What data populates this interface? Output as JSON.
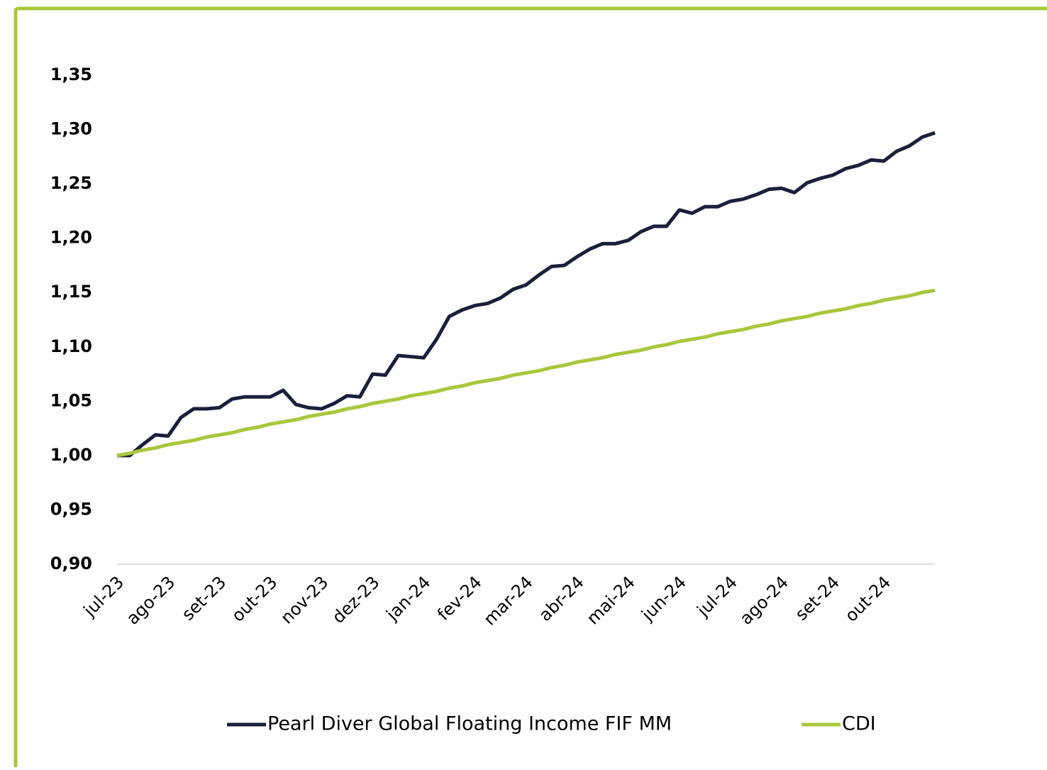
{
  "chart_data": {
    "type": "line",
    "categories": [
      "jul-23",
      null,
      null,
      null,
      "ago-23",
      null,
      null,
      null,
      "set-23",
      null,
      null,
      null,
      "out-23",
      null,
      null,
      null,
      "nov-23",
      null,
      null,
      null,
      "dez-23",
      null,
      null,
      null,
      "jan-24",
      null,
      null,
      null,
      "fev-24",
      null,
      null,
      null,
      "mar-24",
      null,
      null,
      null,
      "abr-24",
      null,
      null,
      null,
      "mai-24",
      null,
      null,
      null,
      "jun-24",
      null,
      null,
      null,
      "jul-24",
      null,
      null,
      null,
      "ago-24",
      null,
      null,
      null,
      "set-24",
      null,
      null,
      null,
      "out-24",
      null,
      null,
      null,
      null
    ],
    "series": [
      {
        "name": "Pearl Diver Global Floating Income FIF MM",
        "color": "#1c1f3b",
        "values": [
          1.0,
          1.0,
          1.01,
          1.019,
          1.018,
          1.035,
          1.043,
          1.043,
          1.044,
          1.052,
          1.054,
          1.054,
          1.054,
          1.06,
          1.047,
          1.044,
          1.043,
          1.048,
          1.055,
          1.054,
          1.075,
          1.074,
          1.092,
          1.091,
          1.09,
          1.107,
          1.128,
          1.134,
          1.138,
          1.14,
          1.145,
          1.153,
          1.157,
          1.166,
          1.174,
          1.175,
          1.183,
          1.19,
          1.195,
          1.195,
          1.198,
          1.206,
          1.211,
          1.211,
          1.226,
          1.223,
          1.229,
          1.229,
          1.234,
          1.236,
          1.24,
          1.245,
          1.246,
          1.242,
          1.251,
          1.255,
          1.258,
          1.264,
          1.267,
          1.272,
          1.271,
          1.28,
          1.285,
          1.293,
          1.297
        ]
      },
      {
        "name": "CDI",
        "color": "#a9c73c",
        "values": [
          1.0,
          1.002,
          1.005,
          1.007,
          1.01,
          1.012,
          1.014,
          1.017,
          1.019,
          1.021,
          1.024,
          1.026,
          1.029,
          1.031,
          1.033,
          1.036,
          1.038,
          1.04,
          1.043,
          1.045,
          1.048,
          1.05,
          1.052,
          1.055,
          1.057,
          1.059,
          1.062,
          1.064,
          1.067,
          1.069,
          1.071,
          1.074,
          1.076,
          1.078,
          1.081,
          1.083,
          1.086,
          1.088,
          1.09,
          1.093,
          1.095,
          1.097,
          1.1,
          1.102,
          1.105,
          1.107,
          1.109,
          1.112,
          1.114,
          1.116,
          1.119,
          1.121,
          1.124,
          1.126,
          1.128,
          1.131,
          1.133,
          1.135,
          1.138,
          1.14,
          1.143,
          1.145,
          1.147,
          1.15,
          1.152
        ]
      }
    ],
    "ylim": [
      0.9,
      1.35
    ],
    "yticks": [
      {
        "value": 0.9,
        "label": "0,90"
      },
      {
        "value": 0.95,
        "label": "0,95"
      },
      {
        "value": 1.0,
        "label": "1,00"
      },
      {
        "value": 1.05,
        "label": "1,05"
      },
      {
        "value": 1.1,
        "label": "1,10"
      },
      {
        "value": 1.15,
        "label": "1,15"
      },
      {
        "value": 1.2,
        "label": "1,20"
      },
      {
        "value": 1.25,
        "label": "1,25"
      },
      {
        "value": 1.3,
        "label": "1,30"
      },
      {
        "value": 1.35,
        "label": "1,35"
      }
    ],
    "grid": false,
    "legend": "bottom"
  }
}
